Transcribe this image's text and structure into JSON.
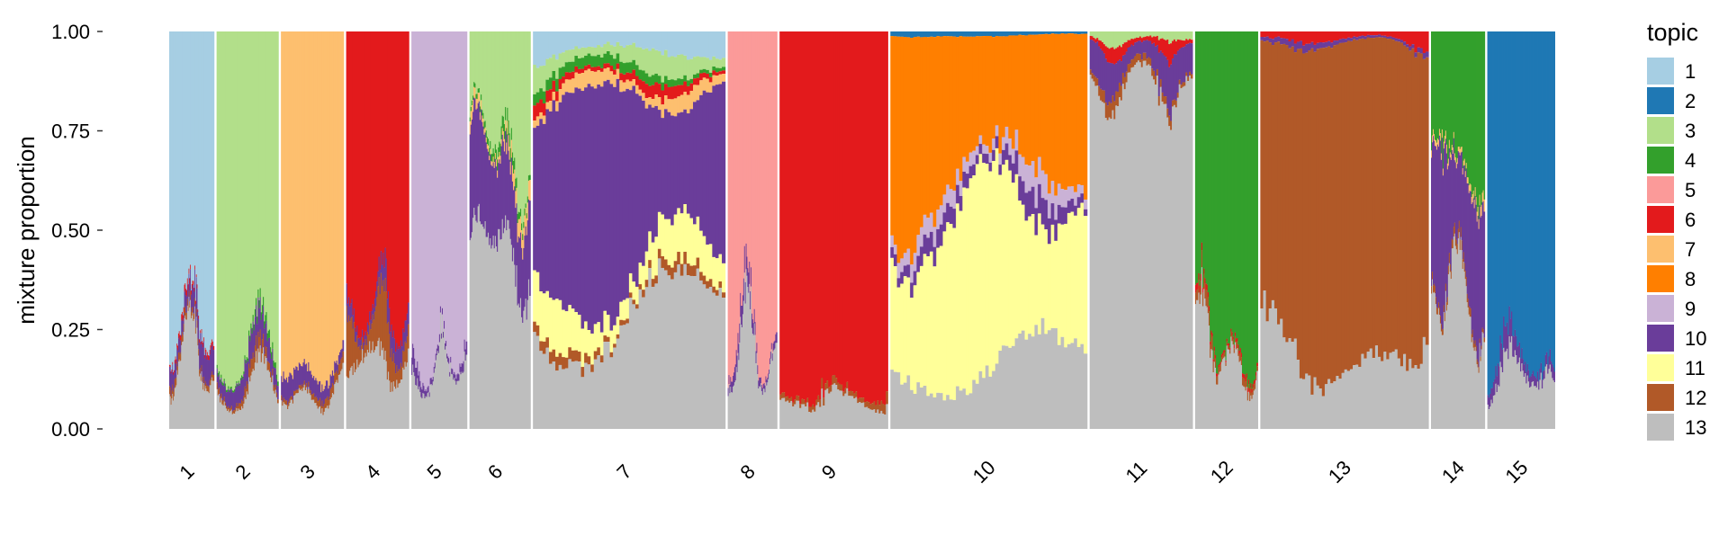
{
  "chart_data": {
    "type": "structure_barplot",
    "ylabel": "mixture proportion",
    "y_ticks": [
      "0.00",
      "0.25",
      "0.50",
      "0.75",
      "1.00"
    ],
    "ylim": [
      0,
      1
    ],
    "legend_title": "topic",
    "legend_position": "right",
    "topics": [
      {
        "label": "1",
        "color": "#a6cee3"
      },
      {
        "label": "2",
        "color": "#1f78b4"
      },
      {
        "label": "3",
        "color": "#b2df8a"
      },
      {
        "label": "4",
        "color": "#33a02c"
      },
      {
        "label": "5",
        "color": "#fb9a99"
      },
      {
        "label": "6",
        "color": "#e31a1c"
      },
      {
        "label": "7",
        "color": "#fdbf6f"
      },
      {
        "label": "8",
        "color": "#ff7f00"
      },
      {
        "label": "9",
        "color": "#cab2d6"
      },
      {
        "label": "10",
        "color": "#6a3d9a"
      },
      {
        "label": "11",
        "color": "#ffff99"
      },
      {
        "label": "12",
        "color": "#b15928"
      },
      {
        "label": "13",
        "color": "#bebebe"
      }
    ],
    "groups": [
      {
        "label": "1",
        "relative_width": 5.0,
        "composition": {
          "1": 0.74,
          "10": 0.06,
          "6": 0.01,
          "12": 0.02,
          "13": 0.17
        }
      },
      {
        "label": "2",
        "relative_width": 6.9,
        "composition": {
          "3": 0.84,
          "4": 0.01,
          "10": 0.04,
          "12": 0.02,
          "13": 0.09
        }
      },
      {
        "label": "3",
        "relative_width": 7.0,
        "composition": {
          "7": 0.83,
          "10": 0.05,
          "12": 0.02,
          "13": 0.1
        }
      },
      {
        "label": "4",
        "relative_width": 7.0,
        "composition": {
          "6": 0.7,
          "12": 0.08,
          "10": 0.05,
          "13": 0.17
        }
      },
      {
        "label": "5",
        "relative_width": 6.2,
        "composition": {
          "9": 0.86,
          "10": 0.02,
          "13": 0.12
        }
      },
      {
        "label": "6",
        "relative_width": 6.8,
        "composition": {
          "3": 0.28,
          "10": 0.22,
          "7": 0.03,
          "4": 0.02,
          "13": 0.45
        }
      },
      {
        "label": "7",
        "relative_width": 21.5,
        "composition": {
          "1": 0.06,
          "3": 0.04,
          "4": 0.02,
          "6": 0.02,
          "7": 0.03,
          "10": 0.45,
          "11": 0.08,
          "12": 0.02,
          "13": 0.28
        }
      },
      {
        "label": "8",
        "relative_width": 5.5,
        "composition": {
          "5": 0.78,
          "10": 0.03,
          "13": 0.19
        }
      },
      {
        "label": "9",
        "relative_width": 12.1,
        "composition": {
          "6": 0.91,
          "12": 0.02,
          "13": 0.07
        }
      },
      {
        "label": "10",
        "relative_width": 22.0,
        "composition": {
          "8": 0.36,
          "11": 0.38,
          "9": 0.04,
          "10": 0.04,
          "2": 0.01,
          "13": 0.17
        }
      },
      {
        "label": "11",
        "relative_width": 11.5,
        "composition": {
          "10": 0.08,
          "6": 0.02,
          "3": 0.02,
          "12": 0.02,
          "13": 0.86
        }
      },
      {
        "label": "12",
        "relative_width": 7.0,
        "composition": {
          "4": 0.78,
          "6": 0.01,
          "12": 0.02,
          "13": 0.19
        }
      },
      {
        "label": "13",
        "relative_width": 18.8,
        "composition": {
          "12": 0.8,
          "6": 0.02,
          "10": 0.01,
          "13": 0.17
        }
      },
      {
        "label": "14",
        "relative_width": 6.0,
        "composition": {
          "4": 0.34,
          "10": 0.28,
          "7": 0.02,
          "12": 0.02,
          "13": 0.34
        }
      },
      {
        "label": "15",
        "relative_width": 7.6,
        "composition": {
          "2": 0.85,
          "10": 0.03,
          "13": 0.12
        }
      }
    ]
  }
}
